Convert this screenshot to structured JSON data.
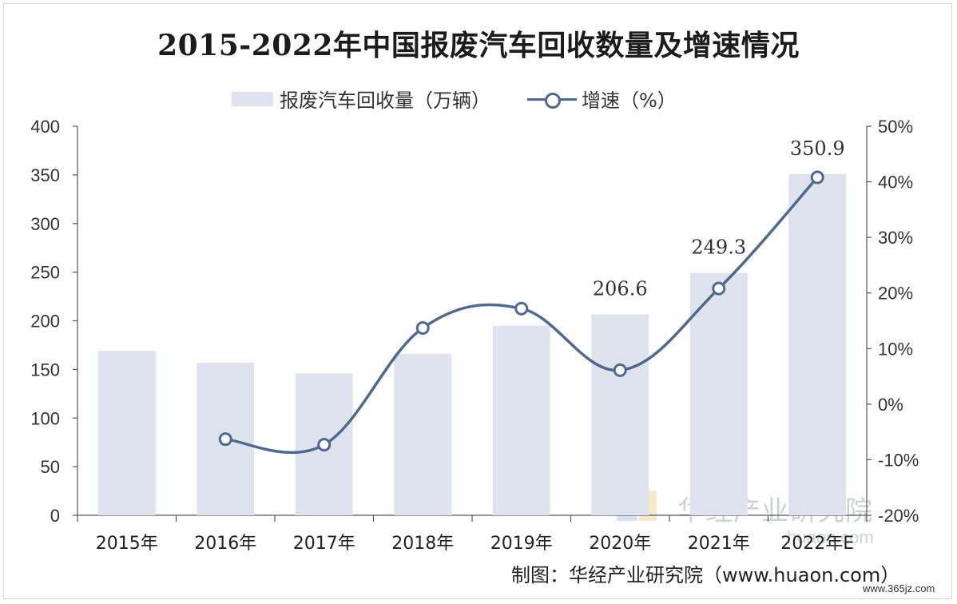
{
  "title": "2015-2022年中国报废汽车回收数量及增速情况",
  "legend": {
    "bar_label": "报废汽车回收量（万辆）",
    "line_label": "增速（%）"
  },
  "source": "制图：华经产业研究院（www.huaon.com）",
  "watermark": "www.365jz.com",
  "brand": "华经产业研究院",
  "brand_sub": "huaon.com",
  "colors": {
    "bar": "#dfe3ee",
    "line": "#4f6a8f",
    "marker_fill": "#ffffff"
  },
  "chart_data": {
    "type": "bar",
    "categories": [
      "2015年",
      "2016年",
      "2017年",
      "2018年",
      "2019年",
      "2020年",
      "2021年",
      "2022年E"
    ],
    "series": [
      {
        "name": "报废汽车回收量（万辆）",
        "type": "bar",
        "axis": "left",
        "values": [
          169,
          157,
          146,
          166,
          195,
          206.6,
          249.3,
          350.9
        ]
      },
      {
        "name": "增速（%）",
        "type": "line",
        "axis": "right",
        "smooth": true,
        "values": [
          null,
          -6.3,
          -7.3,
          13.7,
          17.2,
          6.1,
          20.8,
          40.8
        ]
      }
    ],
    "data_labels": [
      {
        "index": 5,
        "text": "206.6"
      },
      {
        "index": 6,
        "text": "249.3"
      },
      {
        "index": 7,
        "text": "350.9"
      }
    ],
    "y_left": {
      "min": 0,
      "max": 400,
      "ticks": [
        "0",
        "50",
        "100",
        "150",
        "200",
        "250",
        "300",
        "350",
        "400"
      ]
    },
    "y_right": {
      "min": -20,
      "max": 50,
      "ticks": [
        "-20%",
        "-10%",
        "0%",
        "10%",
        "20%",
        "30%",
        "40%",
        "50%"
      ]
    },
    "grid": false,
    "legend_position": "top"
  }
}
